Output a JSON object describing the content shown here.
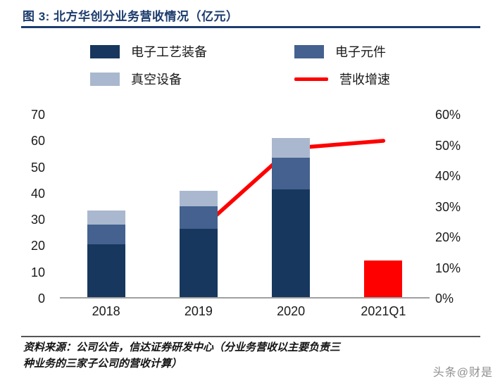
{
  "title": {
    "text": "图 3:  北方华创分业务营收情况（亿元）"
  },
  "colors": {
    "title_navy": "#1C3C6E",
    "bar_dark_navy": "#17375E",
    "bar_steel_blue": "#44618F",
    "bar_light_blue": "#A9B8CE",
    "accent_red": "#FE0000"
  },
  "legend": [
    {
      "label": "电子工艺装备",
      "swatch": "box",
      "color": "#17375E"
    },
    {
      "label": "电子元件",
      "swatch": "box",
      "color": "#44618F"
    },
    {
      "label": "真空设备",
      "swatch": "box",
      "color": "#A9B8CE"
    },
    {
      "label": "营收增速",
      "swatch": "line",
      "color": "#FE0000"
    }
  ],
  "chart_data": {
    "type": "bar",
    "subtype": "stacked bars + growth line on secondary axis",
    "categories": [
      "2018",
      "2019",
      "2020",
      "2021Q1"
    ],
    "series": [
      {
        "name": "电子工艺装备",
        "kind": "bar",
        "color": "#17375E",
        "axis": "left",
        "values": [
          20,
          26,
          41,
          0
        ]
      },
      {
        "name": "电子元件",
        "kind": "bar",
        "color": "#44618F",
        "axis": "left",
        "values": [
          7.5,
          8.5,
          12,
          0
        ]
      },
      {
        "name": "真空设备",
        "kind": "bar",
        "color": "#A9B8CE",
        "axis": "left",
        "values": [
          5.5,
          6,
          7.5,
          0
        ]
      },
      {
        "name": "2021Q1营收(红柱)",
        "kind": "bar",
        "color": "#FE0000",
        "axis": "left",
        "values": [
          0,
          0,
          0,
          14
        ]
      },
      {
        "name": "营收增速",
        "kind": "line",
        "color": "#FE0000",
        "axis": "right",
        "values": [
          null,
          22,
          49,
          51.5
        ]
      }
    ],
    "left_axis": {
      "min": 0,
      "max": 70,
      "ticks": [
        "70",
        "60",
        "50",
        "40",
        "30",
        "20",
        "10",
        "0"
      ]
    },
    "right_axis": {
      "min": 0,
      "max": 60,
      "ticks": [
        "60%",
        "50%",
        "40%",
        "30%",
        "20%",
        "10%",
        "0%"
      ]
    },
    "grid": false,
    "legend_position": "top"
  },
  "footer": {
    "source_line1": "资料来源：公司公告，信达证券研发中心（分业务营收以主要负责三",
    "source_line2": "种业务的三家子公司的营收计算）",
    "watermark": "头条@财是"
  }
}
